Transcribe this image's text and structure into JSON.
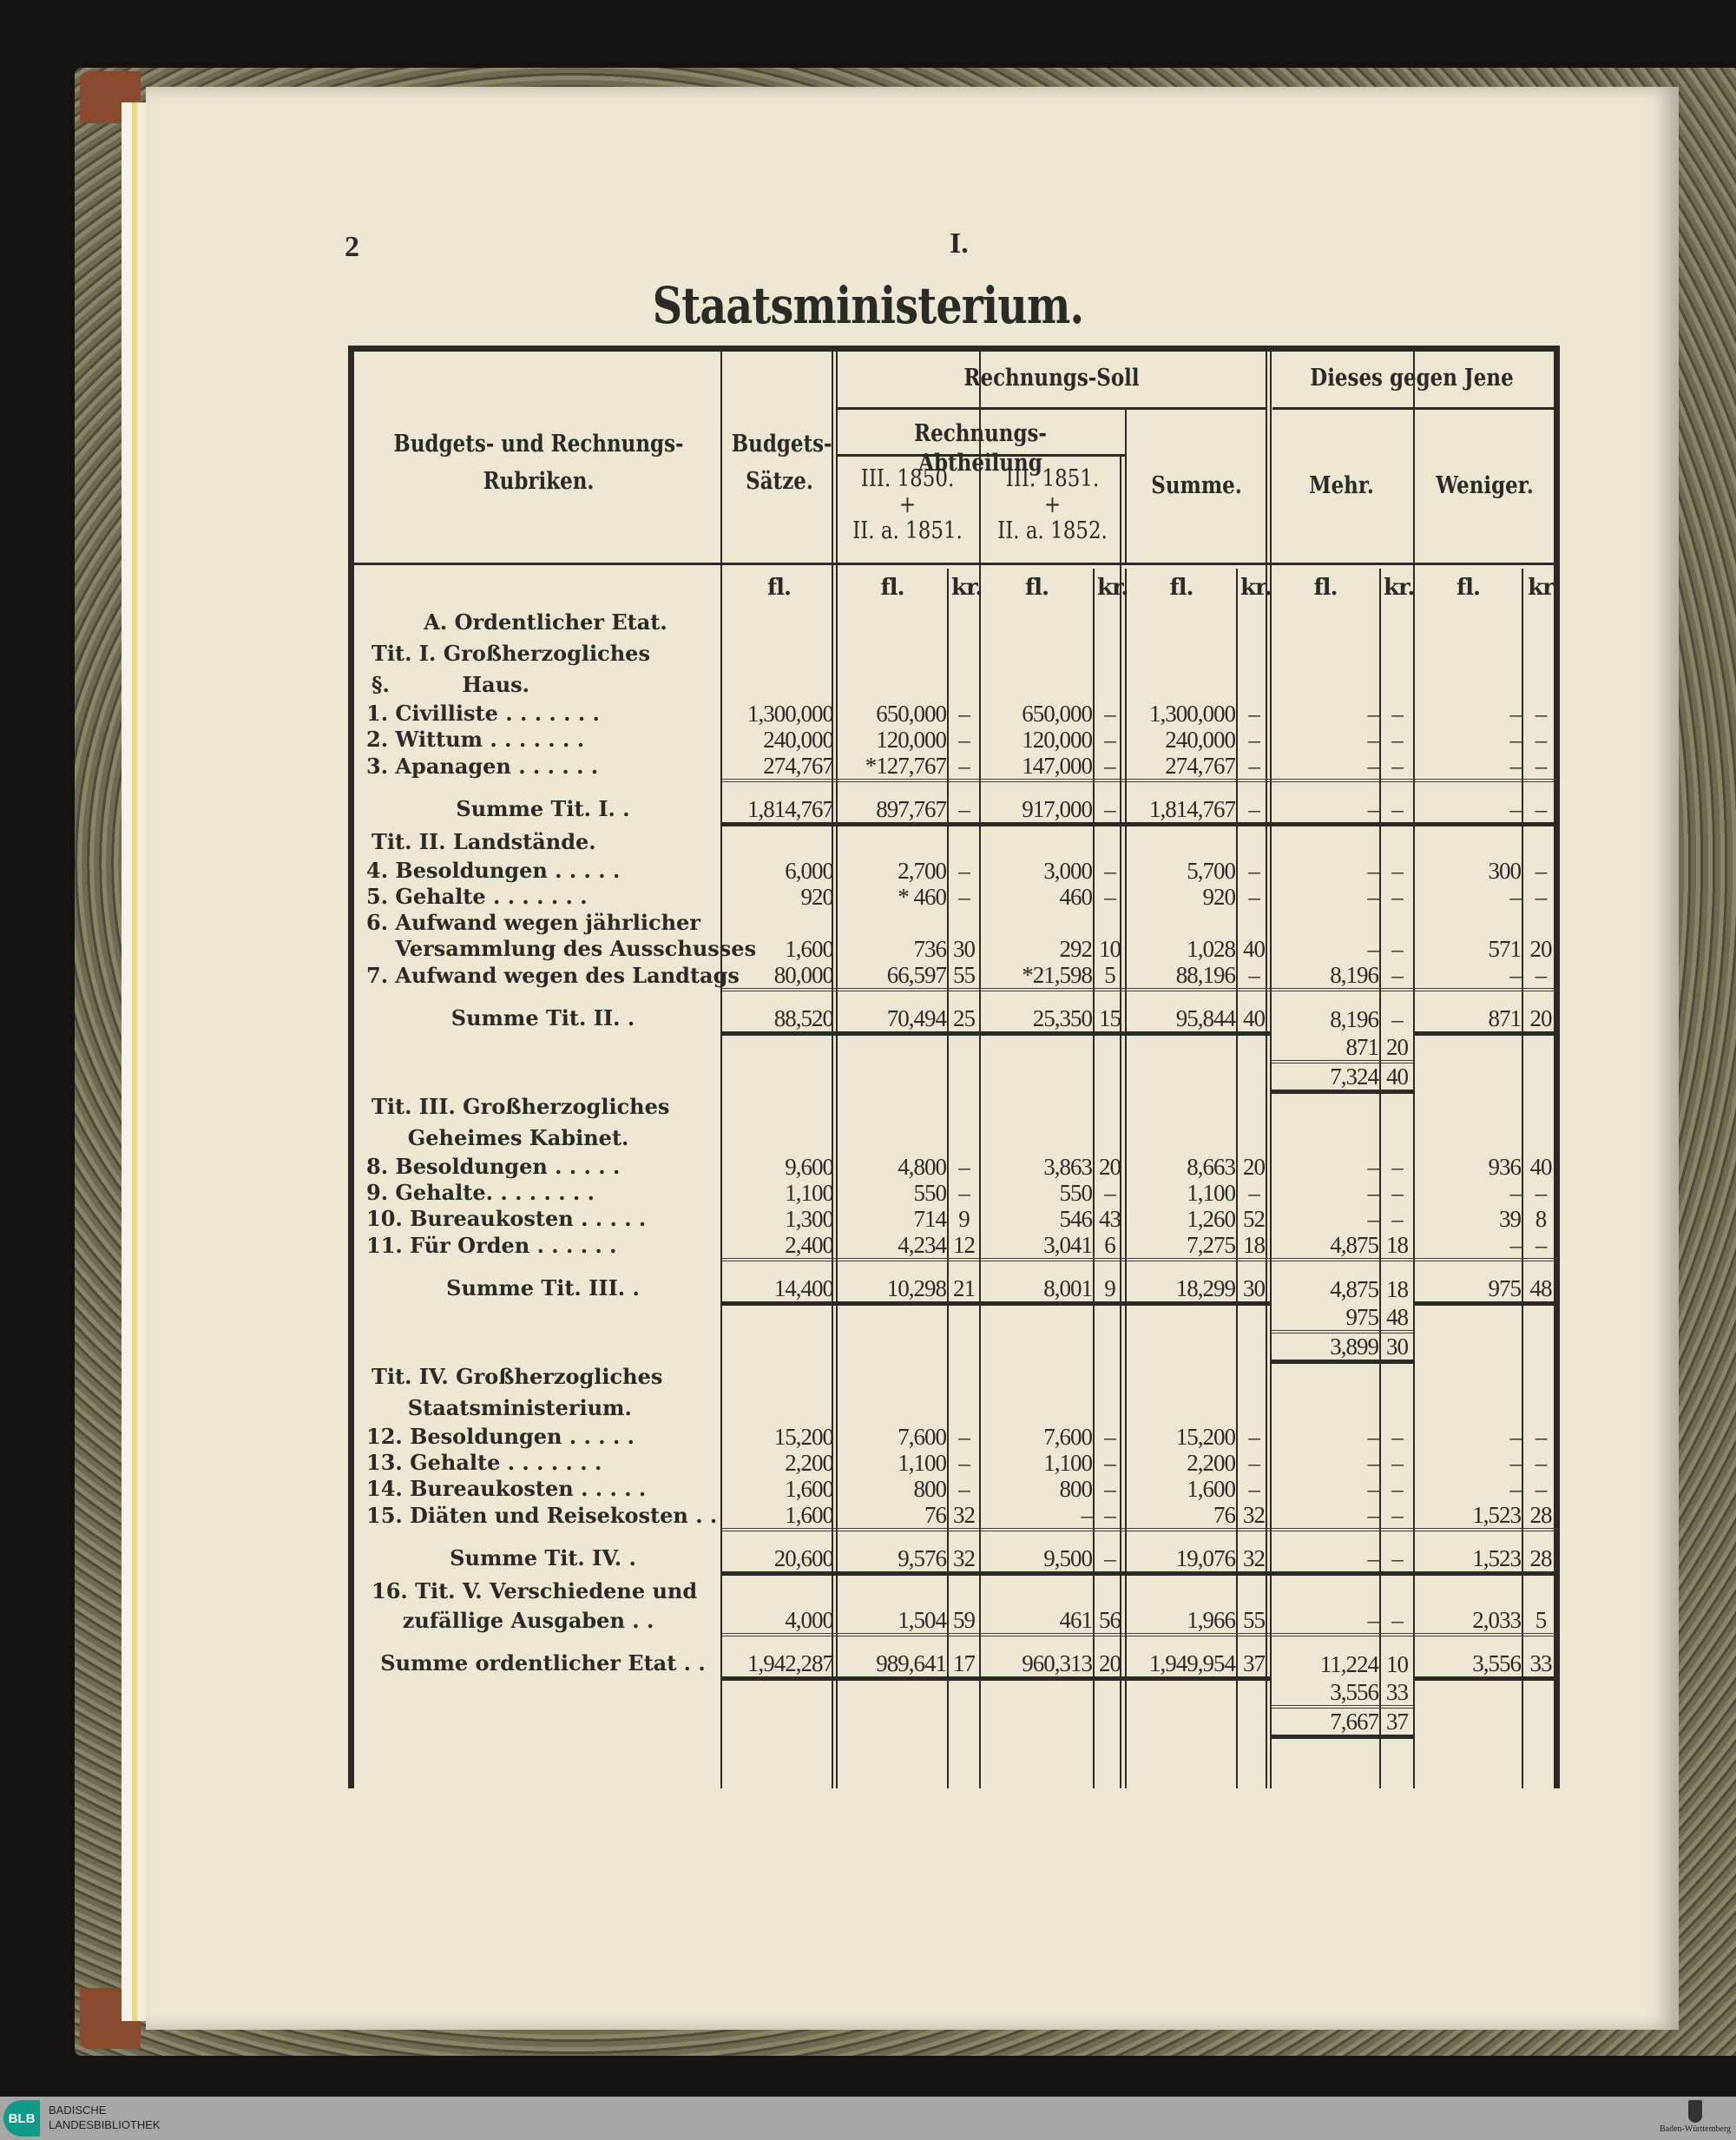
{
  "page": {
    "number": "2",
    "section": "I.",
    "title": "Staatsministerium."
  },
  "headers": {
    "rubriken_1": "Budgets- und Rechnungs-",
    "rubriken_2": "Rubriken.",
    "budget_1": "Budgets-",
    "budget_2": "Sätze.",
    "soll": "Rechnungs-Soll",
    "abtheilung": "Rechnungs-Abtheilung",
    "col_a": [
      "III. 1850.",
      "+",
      "II. a. 1851."
    ],
    "col_b": [
      "III. 1851.",
      "+",
      "II. a. 1852."
    ],
    "summe": "Summe.",
    "dieses": "Dieses gegen Jene",
    "mehr": "Mehr.",
    "weniger": "Weniger."
  },
  "units": [
    "fl.",
    "fl.",
    "kr.",
    "fl.",
    "kr.",
    "fl.",
    "kr.",
    "fl.",
    "kr.",
    "fl.",
    "kr"
  ],
  "rows": [
    {
      "type": "heading center",
      "label": "A. Ordentlicher Etat."
    },
    {
      "type": "heading",
      "label": "Tit. I. Großherzogliches"
    },
    {
      "type": "heading",
      "label": "§.          Haus."
    },
    {
      "type": "item",
      "label": "1. Civilliste . . . . . . .",
      "cells": [
        "1,300,000",
        "650,000",
        "–",
        "650,000",
        "–",
        "1,300,000",
        "–",
        "–",
        "–",
        "–",
        "–"
      ]
    },
    {
      "type": "item",
      "label": "2. Wittum . . . . . . .",
      "cells": [
        "240,000",
        "120,000",
        "–",
        "120,000",
        "–",
        "240,000",
        "–",
        "–",
        "–",
        "–",
        "–"
      ]
    },
    {
      "type": "item",
      "label": "3. Apanagen . . . . . .",
      "cells": [
        "274,767",
        "*127,767",
        "–",
        "147,000",
        "–",
        "274,767",
        "–",
        "–",
        "–",
        "–",
        "–"
      ]
    },
    {
      "type": "sum",
      "label": "Summe Tit. I. .",
      "cells": [
        "1,814,767",
        "897,767",
        "–",
        "917,000",
        "–",
        "1,814,767",
        "–",
        "–",
        "–",
        "–",
        "–"
      ]
    },
    {
      "type": "heading",
      "label": "Tit. II. Landstände."
    },
    {
      "type": "item",
      "label": "4. Besoldungen . . . . .",
      "cells": [
        "6,000",
        "2,700",
        "–",
        "3,000",
        "–",
        "5,700",
        "–",
        "–",
        "–",
        "300",
        "–"
      ]
    },
    {
      "type": "item",
      "label": "5. Gehalte . . . . . . .",
      "cells": [
        "920",
        "*  460",
        "–",
        "460",
        "–",
        "920",
        "–",
        "–",
        "–",
        "–",
        "–"
      ]
    },
    {
      "type": "item",
      "label": "6. Aufwand wegen jährlicher"
    },
    {
      "type": "item",
      "label": "    Versammlung des Ausschusses",
      "cells": [
        "1,600",
        "736",
        "30",
        "292",
        "10",
        "1,028",
        "40",
        "–",
        "–",
        "571",
        "20"
      ]
    },
    {
      "type": "item",
      "label": "7. Aufwand wegen des Landtags",
      "cells": [
        "80,000",
        "66,597",
        "55",
        "*21,598",
        "5",
        "88,196",
        "–",
        "8,196",
        "–",
        "–",
        "–"
      ]
    },
    {
      "type": "sum",
      "label": "Summe Tit. II. .",
      "cells": [
        "88,520",
        "70,494",
        "25",
        "25,350",
        "15",
        "95,844",
        "40",
        "8,196",
        "–",
        "871",
        "20"
      ]
    },
    {
      "type": "extra",
      "cells": [
        "",
        "",
        "",
        "",
        "",
        "",
        "",
        "871",
        "20",
        "",
        ""
      ]
    },
    {
      "type": "result",
      "cells": [
        "",
        "",
        "",
        "",
        "",
        "",
        "",
        "7,324",
        "40",
        "",
        ""
      ]
    },
    {
      "type": "heading",
      "label": "Tit. III. Großherzogliches"
    },
    {
      "type": "heading",
      "label": "     Geheimes Kabinet."
    },
    {
      "type": "item",
      "label": "8. Besoldungen . . . . .",
      "cells": [
        "9,600",
        "4,800",
        "–",
        "3,863",
        "20",
        "8,663",
        "20",
        "–",
        "–",
        "936",
        "40"
      ]
    },
    {
      "type": "item",
      "label": "9. Gehalte. . . . . . . .",
      "cells": [
        "1,100",
        "550",
        "–",
        "550",
        "–",
        "1,100",
        "–",
        "–",
        "–",
        "–",
        "–"
      ]
    },
    {
      "type": "item",
      "label": "10. Bureaukosten . . . . .",
      "cells": [
        "1,300",
        "714",
        "9",
        "546",
        "43",
        "1,260",
        "52",
        "–",
        "–",
        "39",
        "8"
      ]
    },
    {
      "type": "item",
      "label": "11. Für Orden . . . . . .",
      "cells": [
        "2,400",
        "4,234",
        "12",
        "3,041",
        "6",
        "7,275",
        "18",
        "4,875",
        "18",
        "–",
        "–"
      ]
    },
    {
      "type": "sum",
      "label": "Summe Tit. III. .",
      "cells": [
        "14,400",
        "10,298",
        "21",
        "8,001",
        "9",
        "18,299",
        "30",
        "4,875",
        "18",
        "975",
        "48"
      ]
    },
    {
      "type": "extra",
      "cells": [
        "",
        "",
        "",
        "",
        "",
        "",
        "",
        "975",
        "48",
        "",
        ""
      ]
    },
    {
      "type": "result",
      "cells": [
        "",
        "",
        "",
        "",
        "",
        "",
        "",
        "3,899",
        "30",
        "",
        ""
      ]
    },
    {
      "type": "heading",
      "label": "Tit. IV. Großherzogliches"
    },
    {
      "type": "heading",
      "label": "     Staatsministerium."
    },
    {
      "type": "item",
      "label": "12. Besoldungen . . . . .",
      "cells": [
        "15,200",
        "7,600",
        "–",
        "7,600",
        "–",
        "15,200",
        "–",
        "–",
        "–",
        "–",
        "–"
      ]
    },
    {
      "type": "item",
      "label": "13. Gehalte . . . . . . .",
      "cells": [
        "2,200",
        "1,100",
        "–",
        "1,100",
        "–",
        "2,200",
        "–",
        "–",
        "–",
        "–",
        "–"
      ]
    },
    {
      "type": "item",
      "label": "14. Bureaukosten . . . . .",
      "cells": [
        "1,600",
        "800",
        "–",
        "800",
        "–",
        "1,600",
        "–",
        "–",
        "–",
        "–",
        "–"
      ]
    },
    {
      "type": "item",
      "label": "15. Diäten und Reisekosten . .",
      "cells": [
        "1,600",
        "76",
        "32",
        "–",
        "–",
        "76",
        "32",
        "–",
        "–",
        "1,523",
        "28"
      ]
    },
    {
      "type": "sum",
      "label": "Summe Tit. IV. .",
      "cells": [
        "20,600",
        "9,576",
        "32",
        "9,500",
        "–",
        "19,076",
        "32",
        "–",
        "–",
        "1,523",
        "28"
      ]
    },
    {
      "type": "heading",
      "label": "16. Tit. V. Verschiedene und"
    },
    {
      "type": "item",
      "label": "     zufällige Ausgaben . .",
      "cells": [
        "4,000",
        "1,504",
        "59",
        "461",
        "56",
        "1,966",
        "55",
        "–",
        "–",
        "2,033",
        "5"
      ]
    },
    {
      "type": "sum",
      "label": "Summe ordentlicher Etat . .",
      "cells": [
        "1,942,287",
        "989,641",
        "17",
        "960,313",
        "20",
        "1,949,954",
        "37",
        "11,224",
        "10",
        "3,556",
        "33"
      ]
    },
    {
      "type": "extra",
      "cells": [
        "",
        "",
        "",
        "",
        "",
        "",
        "",
        "3,556",
        "33",
        "",
        ""
      ]
    },
    {
      "type": "result",
      "cells": [
        "",
        "",
        "",
        "",
        "",
        "",
        "",
        "7,667",
        "37",
        "",
        ""
      ]
    }
  ],
  "footer": {
    "library_line1": "BADISCHE",
    "library_line2": "LANDESBIBLIOTHEK",
    "logo": "BLB",
    "state": "Baden-Württemberg"
  }
}
